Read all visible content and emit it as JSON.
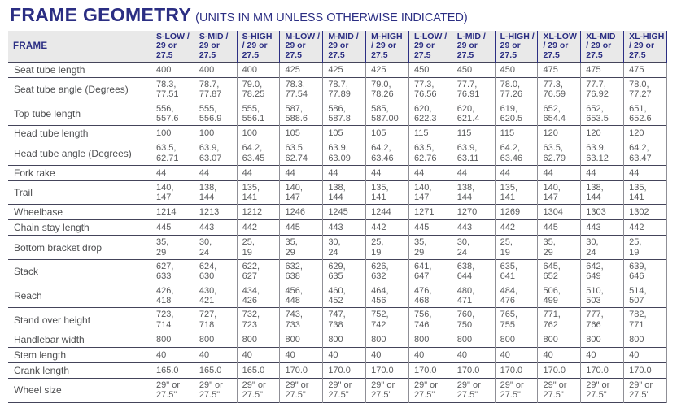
{
  "title": {
    "main": "FRAME GEOMETRY",
    "sub": "(UNITS IN MM UNLESS OTHERWISE INDICATED)"
  },
  "colors": {
    "navy": "#2b2e83",
    "header_bg": "#e9e9e9",
    "cell_text": "#595a5c",
    "row_border": "#44445a",
    "col_border": "#8f8f96"
  },
  "table": {
    "frame_header": "FRAME",
    "columns": [
      "S-LOW /\n29 or\n27.5",
      "S-MID /\n29 or\n27.5",
      "S-HIGH\n/ 29 or\n27.5",
      "M-LOW /\n29 or\n27.5",
      "M-MID /\n29 or\n27.5",
      "M-HIGH\n/ 29 or\n27.5",
      "L-LOW /\n29 or\n27.5",
      "L-MID /\n29 or\n27.5",
      "L-HIGH /\n29 or\n27.5",
      "XL-LOW\n/ 29 or\n27.5",
      "XL-MID\n/ 29 or\n27.5",
      "XL-HIGH\n/ 29 or\n27.5"
    ],
    "rows": [
      {
        "label": "Seat tube length",
        "values": [
          "400",
          "400",
          "400",
          "425",
          "425",
          "425",
          "450",
          "450",
          "450",
          "475",
          "475",
          "475"
        ]
      },
      {
        "label": "Seat tube angle (Degrees)",
        "values": [
          "78.3,\n77.51",
          "78.7,\n77.87",
          "79.0,\n78.25",
          "78.3,\n77.54",
          "78.7,\n77.89",
          "79.0,\n78.26",
          "77.3,\n76.56",
          "77.7,\n76.91",
          "78.0,\n77.26",
          "77.3,\n76.59",
          "77.7,\n76.92",
          "78.0,\n77.27"
        ]
      },
      {
        "label": "Top tube length",
        "values": [
          "556,\n557.6",
          "555,\n556.9",
          "555,\n556.1",
          "587,\n588.6",
          "586,\n587.8",
          "585,\n587.00",
          "620,\n622.3",
          "620,\n621.4",
          "619,\n620.5",
          "652,\n654.4",
          "652,\n653.5",
          "651,\n652.6"
        ]
      },
      {
        "label": "Head tube length",
        "values": [
          "100",
          "100",
          "100",
          "105",
          "105",
          "105",
          "115",
          "115",
          "115",
          "120",
          "120",
          "120"
        ]
      },
      {
        "label": "Head tube angle (Degrees)",
        "values": [
          "63.5,\n62.71",
          "63.9,\n63.07",
          "64.2,\n63.45",
          "63.5,\n62.74",
          "63.9,\n63.09",
          "64.2,\n63.46",
          "63.5,\n62.76",
          "63.9,\n63.11",
          "64.2,\n63.46",
          "63.5,\n62.79",
          "63.9,\n63.12",
          "64.2,\n63.47"
        ]
      },
      {
        "label": "Fork rake",
        "values": [
          "44",
          "44",
          "44",
          "44",
          "44",
          "44",
          "44",
          "44",
          "44",
          "44",
          "44",
          "44"
        ]
      },
      {
        "label": "Trail",
        "values": [
          "140,\n147",
          "138,\n144",
          "135,\n141",
          "140,\n147",
          "138,\n144",
          "135,\n141",
          "140,\n147",
          "138,\n144",
          "135,\n141",
          "140,\n147",
          "138,\n144",
          "135,\n141"
        ]
      },
      {
        "label": "Wheelbase",
        "values": [
          "1214",
          "1213",
          "1212",
          "1246",
          "1245",
          "1244",
          "1271",
          "1270",
          "1269",
          "1304",
          "1303",
          "1302"
        ]
      },
      {
        "label": "Chain stay length",
        "values": [
          "445",
          "443",
          "442",
          "445",
          "443",
          "442",
          "445",
          "443",
          "442",
          "445",
          "443",
          "442"
        ]
      },
      {
        "label": "Bottom bracket drop",
        "values": [
          "35,\n29",
          "30,\n24",
          "25,\n19",
          "35,\n29",
          "30,\n24",
          "25,\n19",
          "35,\n29",
          "30,\n24",
          "25,\n19",
          "35,\n29",
          "30,\n24",
          "25,\n19"
        ]
      },
      {
        "label": "Stack",
        "values": [
          "627,\n633",
          "624,\n630",
          "622,\n627",
          "632,\n638",
          "629,\n635",
          "626,\n632",
          "641,\n647",
          "638,\n644",
          "635,\n641",
          "645,\n652",
          "642,\n649",
          "639,\n646"
        ]
      },
      {
        "label": "Reach",
        "values": [
          "426,\n418",
          "430,\n421",
          "434,\n426",
          "456,\n448",
          "460,\n452",
          "464,\n456",
          "476,\n468",
          "480,\n471",
          "484,\n476",
          "506,\n499",
          "510,\n503",
          "514,\n507"
        ]
      },
      {
        "label": "Stand over height",
        "values": [
          "723,\n714",
          "727,\n718",
          "732,\n723",
          "743,\n733",
          "747,\n738",
          "752,\n742",
          "756,\n746",
          "760,\n750",
          "765,\n755",
          "771,\n762",
          "777,\n766",
          "782,\n771"
        ]
      },
      {
        "label": "Handlebar width",
        "values": [
          "800",
          "800",
          "800",
          "800",
          "800",
          "800",
          "800",
          "800",
          "800",
          "800",
          "800",
          "800"
        ]
      },
      {
        "label": "Stem length",
        "values": [
          "40",
          "40",
          "40",
          "40",
          "40",
          "40",
          "40",
          "40",
          "40",
          "40",
          "40",
          "40"
        ]
      },
      {
        "label": "Crank length",
        "values": [
          "165.0",
          "165.0",
          "165.0",
          "170.0",
          "170.0",
          "170.0",
          "170.0",
          "170.0",
          "170.0",
          "170.0",
          "170.0",
          "170.0"
        ]
      },
      {
        "label": "Wheel size",
        "values": [
          "29\" or\n27.5\"",
          "29\" or\n27.5\"",
          "29\" or\n27.5\"",
          "29\" or\n27.5\"",
          "29\" or\n27.5\"",
          "29\" or\n27.5\"",
          "29\" or\n27.5\"",
          "29\" or\n27.5\"",
          "29\" or\n27.5\"",
          "29\" or\n27.5\"",
          "29\" or\n27.5\"",
          "29\" or\n27.5\""
        ]
      }
    ]
  }
}
